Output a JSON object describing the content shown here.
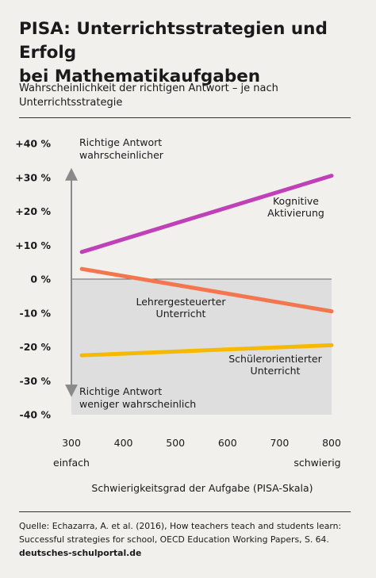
{
  "header": {
    "title_line1": "PISA: Unterrichtsstrategien und Erfolg",
    "title_line2": "bei Mathematikaufgaben",
    "subtitle_line1": "Wahrscheinlichkeit der richtigen Antwort – je nach",
    "subtitle_line2": "Unterrichtsstrategie"
  },
  "annotations": {
    "top_line1": "Richtige Antwort",
    "top_line2": "wahrscheinlicher",
    "bottom_line1": "Richtige Antwort",
    "bottom_line2": "weniger wahrscheinlich",
    "x_left": "einfach",
    "x_right": "schwierig"
  },
  "footer": {
    "source_line1": "Quelle: Echazarra, A. et al. (2016), How teachers teach and students learn:",
    "source_line2": "Successful strategies for school, OECD Education Working Papers, S. 64.",
    "site": "deutsches-schulportal.de"
  },
  "colors": {
    "background": "#f2f0ec",
    "negative_area": "#dedede",
    "kognitive": "#c040b8",
    "lehrer": "#f4764f",
    "schueler": "#f7b900"
  },
  "chart_data": {
    "type": "line",
    "title": "",
    "xlabel": "Schwierigkeitsgrad der Aufgabe (PISA-Skala)",
    "ylabel": "",
    "xlim": [
      300,
      800
    ],
    "ylim": [
      -40,
      40
    ],
    "x_ticks": [
      300,
      400,
      500,
      600,
      700,
      800
    ],
    "x_tick_labels": [
      "300",
      "400",
      "500",
      "600",
      "700",
      "800"
    ],
    "y_ticks": [
      40,
      30,
      20,
      10,
      0,
      -10,
      -20,
      -30,
      -40
    ],
    "y_tick_labels": [
      "+40 %",
      "+30 %",
      "+20 %",
      "+10 %",
      "0 %",
      "-10 %",
      "-20 %",
      "-30 %",
      "-40 %"
    ],
    "grid": false,
    "series": [
      {
        "name": "Kognitive Aktivierung",
        "label_lines": [
          "Kognitive",
          "Aktivierung"
        ],
        "x": [
          320,
          800
        ],
        "y": [
          8,
          30.5
        ]
      },
      {
        "name": "Lehrergesteuerter Unterricht",
        "label_lines": [
          "Lehrergesteuerter",
          "Unterricht"
        ],
        "x": [
          320,
          800
        ],
        "y": [
          3,
          -9.5
        ]
      },
      {
        "name": "Schülerorientierter Unterricht",
        "label_lines": [
          "Schülerorientierter",
          "Unterricht"
        ],
        "x": [
          320,
          800
        ],
        "y": [
          -22.5,
          -19.5
        ]
      }
    ]
  }
}
